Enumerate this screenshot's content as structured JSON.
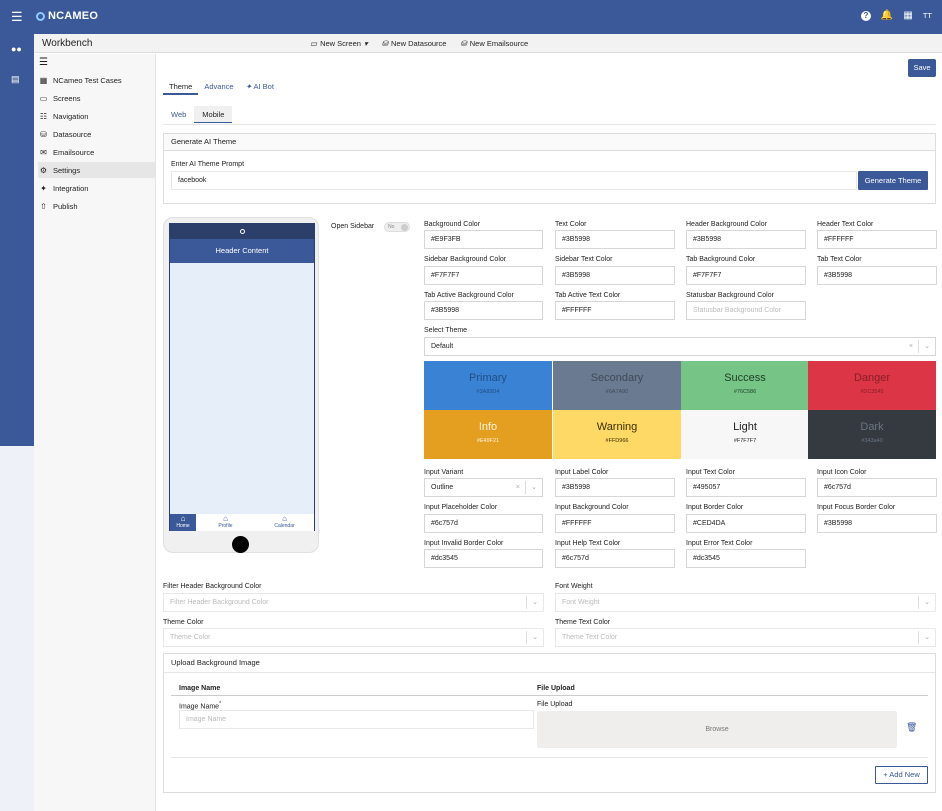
{
  "app": {
    "logo": "NCAMEO",
    "avatar": "TT"
  },
  "workbench": {
    "title": "Workbench",
    "new_screen": "New Screen",
    "new_datasource": "New Datasource",
    "new_emailsource": "New Emailsource"
  },
  "sidebar": {
    "items": [
      {
        "label": "NCameo Test Cases",
        "icon": "grid-icon"
      },
      {
        "label": "Screens",
        "icon": "monitor-icon"
      },
      {
        "label": "Navigation",
        "icon": "sitemap-icon"
      },
      {
        "label": "Datasource",
        "icon": "database-icon"
      },
      {
        "label": "Emailsource",
        "icon": "envelope-icon"
      },
      {
        "label": "Settings",
        "icon": "gear-icon"
      },
      {
        "label": "Integration",
        "icon": "plug-icon"
      },
      {
        "label": "Publish",
        "icon": "upload-icon"
      }
    ]
  },
  "save_label": "Save",
  "tabs": {
    "theme": "Theme",
    "advance": "Advance",
    "ai_bot": "AI Bot",
    "web": "Web",
    "mobile": "Mobile"
  },
  "ai": {
    "header": "Generate AI Theme",
    "prompt_label": "Enter AI Theme Prompt",
    "prompt_value": "facebook",
    "button": "Generate Theme"
  },
  "phone": {
    "header": "Header Content",
    "nav": [
      "Home",
      "Profile",
      "Calendar"
    ]
  },
  "open_sidebar": {
    "label": "Open Sidebar",
    "toggle": "No"
  },
  "colors": [
    {
      "label": "Background Color",
      "value": "#E9F3FB"
    },
    {
      "label": "Text Color",
      "value": "#3B5998"
    },
    {
      "label": "Header Background Color",
      "value": "#3B5998"
    },
    {
      "label": "Header Text Color",
      "value": "#FFFFFF"
    },
    {
      "label": "Sidebar Background Color",
      "value": "#F7F7F7"
    },
    {
      "label": "Sidebar Text Color",
      "value": "#3B5998"
    },
    {
      "label": "Tab Background Color",
      "value": "#F7F7F7"
    },
    {
      "label": "Tab Text Color",
      "value": "#3B5998"
    },
    {
      "label": "Tab Active Background Color",
      "value": "#3B5998"
    },
    {
      "label": "Tab Active Text Color",
      "value": "#FFFFFF"
    },
    {
      "label": "Statusbar Background Color",
      "placeholder": "Statusbar Background Color"
    }
  ],
  "select_theme": {
    "label": "Select Theme",
    "value": "Default"
  },
  "swatches": [
    {
      "name": "Primary",
      "code": "#3A83D4",
      "bg": "#3a83d4",
      "fg": "#1f4f85"
    },
    {
      "name": "Secondary",
      "code": "#6A7A90",
      "bg": "#6a7a90",
      "fg": "#3f4a59"
    },
    {
      "name": "Success",
      "code": "#76C586",
      "bg": "#76c586",
      "fg": "#1d3d25"
    },
    {
      "name": "Danger",
      "code": "#DC3545",
      "bg": "#dc3545",
      "fg": "#8a1f28"
    },
    {
      "name": "Info",
      "code": "#E49F21",
      "bg": "#e49f21",
      "fg": "#fff3d9"
    },
    {
      "name": "Warning",
      "code": "#FFD966",
      "bg": "#ffd966",
      "fg": "#3a2e00"
    },
    {
      "name": "Light",
      "code": "#F7F7F7",
      "bg": "#f7f7f7",
      "fg": "#222222"
    },
    {
      "name": "Dark",
      "code": "#343a40",
      "bg": "#343a40",
      "fg": "#6b7480"
    }
  ],
  "inputs": [
    {
      "label": "Input Variant",
      "value": "Outline",
      "type": "select"
    },
    {
      "label": "Input Label Color",
      "value": "#3B5998"
    },
    {
      "label": "Input Text Color",
      "value": "#495057"
    },
    {
      "label": "Input Icon Color",
      "value": "#6c757d"
    },
    {
      "label": "Input Placeholder Color",
      "value": "#6c757d"
    },
    {
      "label": "Input Background Color",
      "value": "#FFFFFF"
    },
    {
      "label": "Input Border Color",
      "value": "#CED4DA"
    },
    {
      "label": "Input Focus Border Color",
      "value": "#3B5998"
    },
    {
      "label": "Input Invalid Border Color",
      "value": "#dc3545"
    },
    {
      "label": "Input Help Text Color",
      "value": "#6c757d"
    },
    {
      "label": "Input Error Text Color",
      "value": "#dc3545"
    }
  ],
  "bottom": {
    "filter_header_label": "Filter Header Background Color",
    "filter_header_ph": "Filter Header Background Color",
    "font_weight_label": "Font Weight",
    "font_weight_ph": "Font Weight",
    "theme_color_label": "Theme Color",
    "theme_color_ph": "Theme Color",
    "theme_text_label": "Theme Text Color",
    "theme_text_ph": "Theme Text Color"
  },
  "upload": {
    "header": "Upload Background Image",
    "col_name": "Image Name",
    "col_file": "File Upload",
    "name_label": "Image Name",
    "required": "*",
    "name_ph": "Image Name",
    "file_label": "File Upload",
    "browse": "Browse",
    "add_new": "+ Add New"
  }
}
